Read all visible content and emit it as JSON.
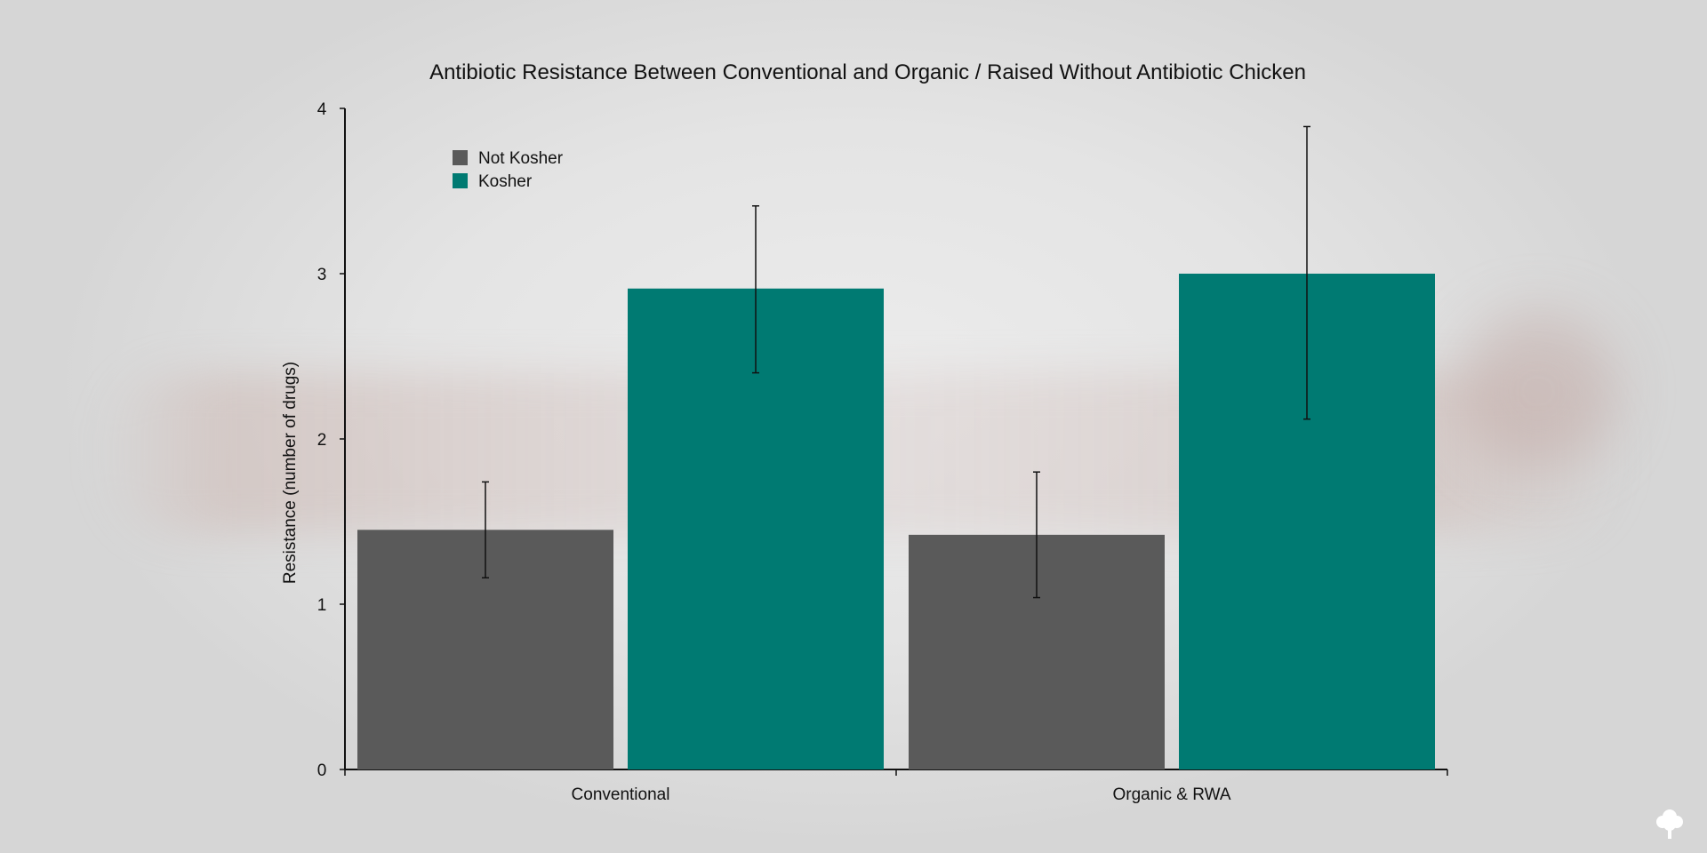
{
  "chart_data": {
    "type": "bar",
    "title": "Antibiotic Resistance Between Conventional and Organic / Raised Without Antibiotic Chicken",
    "xlabel": "",
    "ylabel": "Resistance (number of drugs)",
    "ylim": [
      0,
      4
    ],
    "yticks": [
      "0",
      "1",
      "2",
      "3",
      "4"
    ],
    "categories": [
      "Conventional",
      "Organic & RWA"
    ],
    "series": [
      {
        "name": "Not Kosher",
        "color": "#5a5a5a",
        "values": [
          1.45,
          1.42
        ],
        "error_low": [
          1.16,
          1.04
        ],
        "error_high": [
          1.74,
          1.8
        ]
      },
      {
        "name": "Kosher",
        "color": "#007a72",
        "values": [
          2.91,
          3.0
        ],
        "error_low": [
          2.4,
          2.12
        ],
        "error_high": [
          3.41,
          3.89
        ]
      }
    ],
    "legend_position": "top-left",
    "grid": false
  },
  "logo": {
    "icon": "tree-icon",
    "color": "#ffffff"
  }
}
